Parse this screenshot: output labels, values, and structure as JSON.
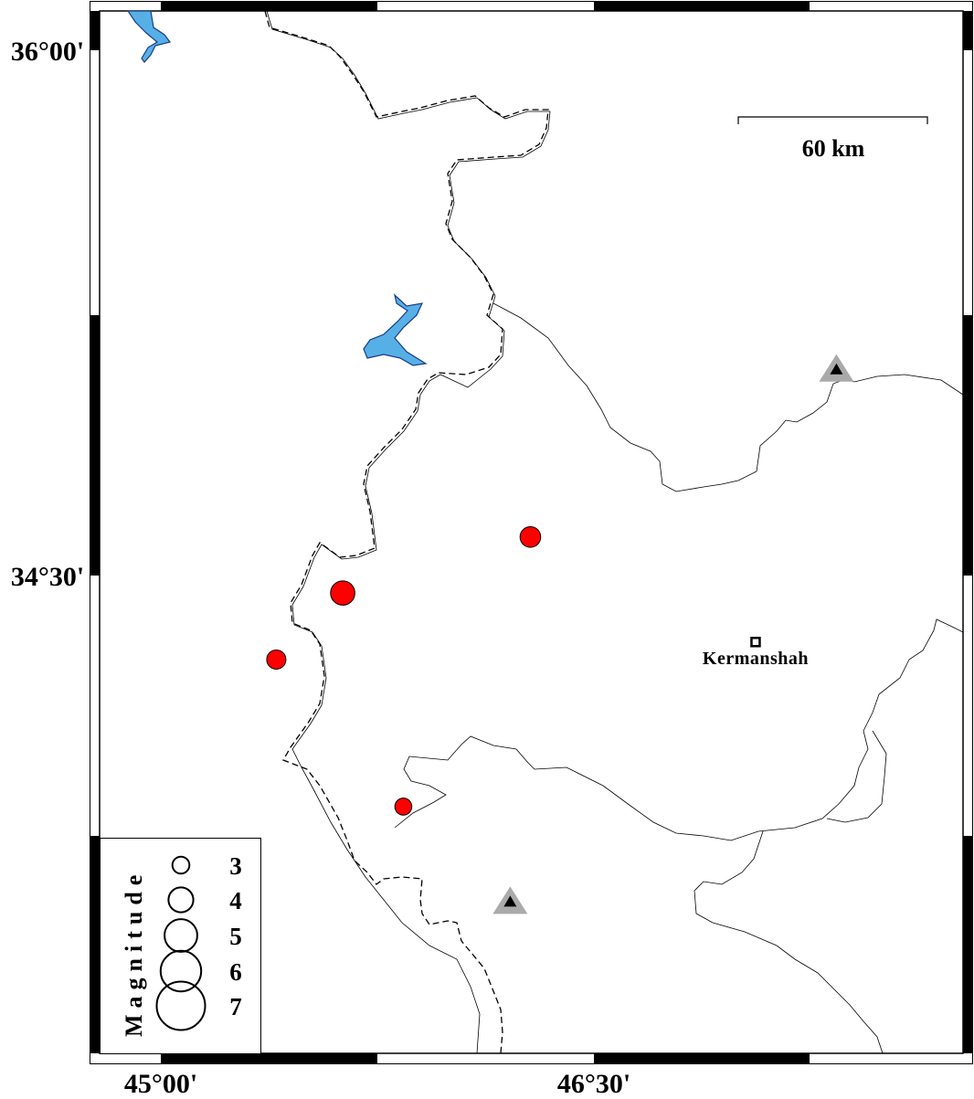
{
  "map": {
    "lon_range": [
      44.79,
      47.78
    ],
    "lat_range": [
      33.29,
      36.11
    ],
    "x_ticks": [
      {
        "value": 45.0,
        "label": "45°00'"
      },
      {
        "value": 46.5,
        "label": "46°30'"
      }
    ],
    "y_ticks": [
      {
        "value": 36.0,
        "label": "36°00'"
      },
      {
        "value": 34.5,
        "label": "34°30'"
      }
    ],
    "scale_bar": {
      "label": "60 km",
      "length_km": 60
    },
    "colors": {
      "event": "#ff0000",
      "water": "#56b0e6",
      "water_edge": "#1a3a8c",
      "station": "#aaaaaa"
    }
  },
  "events": [
    {
      "lon": 46.28,
      "lat": 34.61,
      "mag": 3.5
    },
    {
      "lon": 45.63,
      "lat": 34.45,
      "mag": 4.0
    },
    {
      "lon": 45.4,
      "lat": 34.26,
      "mag": 3.3
    },
    {
      "lon": 45.84,
      "lat": 33.84,
      "mag": 3.0
    }
  ],
  "stations": [
    {
      "lon": 47.34,
      "lat": 35.09
    },
    {
      "lon": 46.21,
      "lat": 33.57
    }
  ],
  "cities": [
    {
      "name": "Kermanshah",
      "lon": 47.06,
      "lat": 34.31
    }
  ],
  "legend": {
    "title": "Magnitude",
    "entries": [
      {
        "mag": 3,
        "label": "3"
      },
      {
        "mag": 4,
        "label": "4"
      },
      {
        "mag": 5,
        "label": "5"
      },
      {
        "mag": 6,
        "label": "6"
      },
      {
        "mag": 7,
        "label": "7"
      }
    ]
  }
}
